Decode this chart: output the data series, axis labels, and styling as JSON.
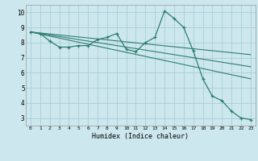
{
  "xlabel": "Humidex (Indice chaleur)",
  "ylabel": "",
  "bg_color": "#cce8ee",
  "grid_color": "#aacdd6",
  "line_color": "#2e7d6e",
  "xlim": [
    -0.5,
    23.5
  ],
  "ylim": [
    2.5,
    10.5
  ],
  "xticks": [
    0,
    1,
    2,
    3,
    4,
    5,
    6,
    7,
    8,
    9,
    10,
    11,
    12,
    13,
    14,
    15,
    16,
    17,
    18,
    19,
    20,
    21,
    22,
    23
  ],
  "yticks": [
    3,
    4,
    5,
    6,
    7,
    8,
    9,
    10
  ],
  "main_x": [
    0,
    1,
    2,
    3,
    4,
    5,
    6,
    7,
    8,
    9,
    10,
    11,
    12,
    13,
    14,
    15,
    16,
    17,
    18,
    19,
    20,
    21,
    22,
    23
  ],
  "main_y": [
    8.7,
    8.6,
    8.1,
    7.7,
    7.7,
    7.8,
    7.8,
    8.2,
    8.35,
    8.6,
    7.55,
    7.4,
    8.0,
    8.35,
    10.1,
    9.6,
    9.0,
    7.45,
    5.6,
    4.45,
    4.15,
    3.45,
    3.0,
    2.9
  ],
  "trend1_x": [
    0,
    23
  ],
  "trend1_y": [
    8.7,
    7.2
  ],
  "trend2_x": [
    0,
    23
  ],
  "trend2_y": [
    8.7,
    6.4
  ],
  "trend3_x": [
    0,
    23
  ],
  "trend3_y": [
    8.7,
    5.6
  ]
}
